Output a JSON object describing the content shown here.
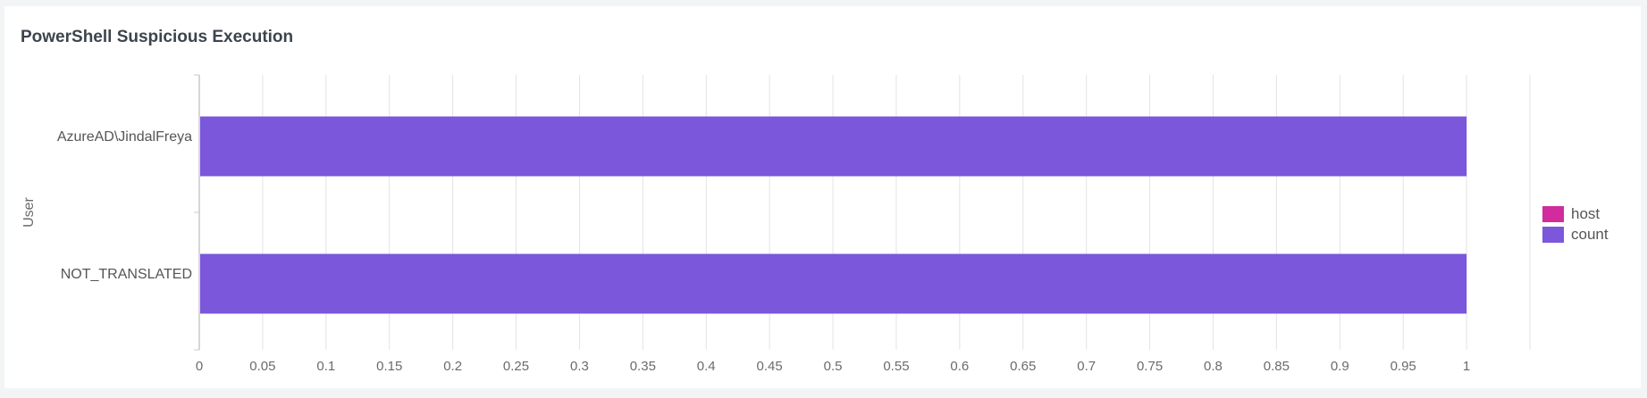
{
  "panel": {
    "title": "PowerShell Suspicious Execution"
  },
  "colors": {
    "host": "#d12b9e",
    "count": "#7b57db"
  },
  "legend": [
    {
      "name": "host",
      "color_key": "host"
    },
    {
      "name": "count",
      "color_key": "count"
    }
  ],
  "chart_data": {
    "type": "bar",
    "orientation": "horizontal",
    "title": "PowerShell Suspicious Execution",
    "xlabel": "",
    "ylabel": "User",
    "categories": [
      "AzureAD\\JindalFreya",
      "NOT_TRANSLATED"
    ],
    "series": [
      {
        "name": "host",
        "values": [
          0,
          0
        ]
      },
      {
        "name": "count",
        "values": [
          1,
          1
        ]
      }
    ],
    "xlim": [
      0,
      1.05
    ],
    "xticks": [
      "0",
      "0.05",
      "0.1",
      "0.15",
      "0.2",
      "0.25",
      "0.3",
      "0.35",
      "0.4",
      "0.45",
      "0.5",
      "0.55",
      "0.6",
      "0.65",
      "0.7",
      "0.75",
      "0.8",
      "0.85",
      "0.9",
      "0.95",
      "1"
    ],
    "grid": true,
    "legend_position": "right"
  }
}
